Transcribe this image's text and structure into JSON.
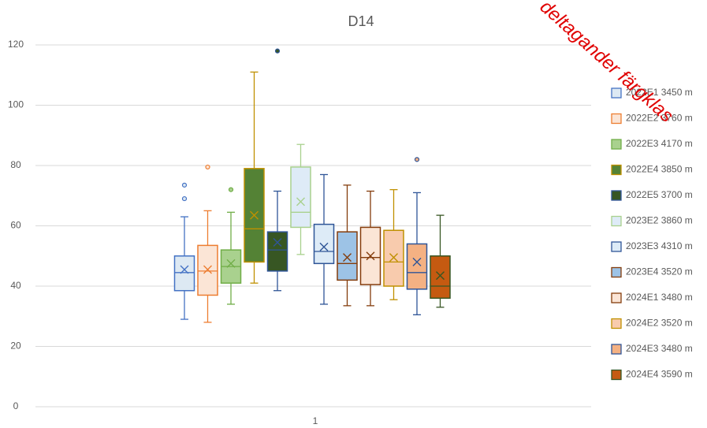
{
  "chart_data": {
    "type": "box",
    "title": "D14",
    "categories": [
      "1"
    ],
    "ylim": [
      0,
      120
    ],
    "yticks": [
      0,
      20,
      40,
      60,
      80,
      100,
      120
    ],
    "grid": true,
    "legend": "right",
    "annotation": "deltagander färgklas",
    "series": [
      {
        "name": "2022E1 3450 m",
        "color": "#dde9f3",
        "border": "#4472c4",
        "min": 29,
        "q1": 38.5,
        "median": 44.5,
        "q3": 50,
        "max": 63,
        "mean": 45.5,
        "outliers": [
          69,
          73.5
        ]
      },
      {
        "name": "2022E2 3760 m",
        "color": "#fbe5d6",
        "border": "#ed7d31",
        "min": 28,
        "q1": 37,
        "median": 45,
        "q3": 53.5,
        "max": 65,
        "mean": 45.5,
        "outliers": [
          79.5
        ]
      },
      {
        "name": "2022E3 4170 m",
        "color": "#a9d18e",
        "border": "#70ad47",
        "min": 34,
        "q1": 41,
        "median": 46.5,
        "q3": 52,
        "max": 64.5,
        "mean": 47.5,
        "outliers": [
          72
        ]
      },
      {
        "name": "2022E4 3850 m",
        "color": "#548235",
        "border": "#bf9000",
        "min": 41,
        "q1": 48,
        "median": 59,
        "q3": 79,
        "max": 111,
        "mean": 63.5,
        "outliers": []
      },
      {
        "name": "2022E5 3700 m",
        "color": "#375623",
        "border": "#2f5597",
        "min": 38.5,
        "q1": 45,
        "median": 52,
        "q3": 58,
        "max": 71.5,
        "mean": 54.5,
        "outliers": [
          118
        ]
      },
      {
        "name": "2023E2 3860 m",
        "color": "#deebf7",
        "border": "#a9d18e",
        "min": 50.5,
        "q1": 59.5,
        "median": 64.5,
        "q3": 79.5,
        "max": 87,
        "mean": 68,
        "outliers": []
      },
      {
        "name": "2023E3 4310 m",
        "color": "#ddebf7",
        "border": "#2f5597",
        "min": 34,
        "q1": 47.5,
        "median": 51.5,
        "q3": 60.5,
        "max": 77,
        "mean": 53,
        "outliers": []
      },
      {
        "name": "2023E4 3520 m",
        "color": "#9dc3e6",
        "border": "#843c0c",
        "min": 33.5,
        "q1": 42,
        "median": 47.5,
        "q3": 58,
        "max": 73.5,
        "mean": 49.5,
        "outliers": []
      },
      {
        "name": "2024E1 3480 m",
        "color": "#fbe5d6",
        "border": "#843c0c",
        "min": 33.5,
        "q1": 40.5,
        "median": 49.5,
        "q3": 59.5,
        "max": 71.5,
        "mean": 50,
        "outliers": []
      },
      {
        "name": "2024E2 3520 m",
        "color": "#f8cbad",
        "border": "#bf9000",
        "min": 35.5,
        "q1": 40,
        "median": 48,
        "q3": 58.5,
        "max": 72,
        "mean": 49.5,
        "outliers": []
      },
      {
        "name": "2024E3 3480 m",
        "color": "#f4b183",
        "border": "#2f5597",
        "min": 30.5,
        "q1": 39,
        "median": 44.5,
        "q3": 54,
        "max": 71,
        "mean": 48,
        "outliers": [
          82
        ]
      },
      {
        "name": "2024E4 3590 m",
        "color": "#c55a11",
        "border": "#375623",
        "min": 33,
        "q1": 36,
        "median": 40,
        "q3": 50,
        "max": 63.5,
        "mean": 43.5,
        "outliers": []
      }
    ]
  }
}
